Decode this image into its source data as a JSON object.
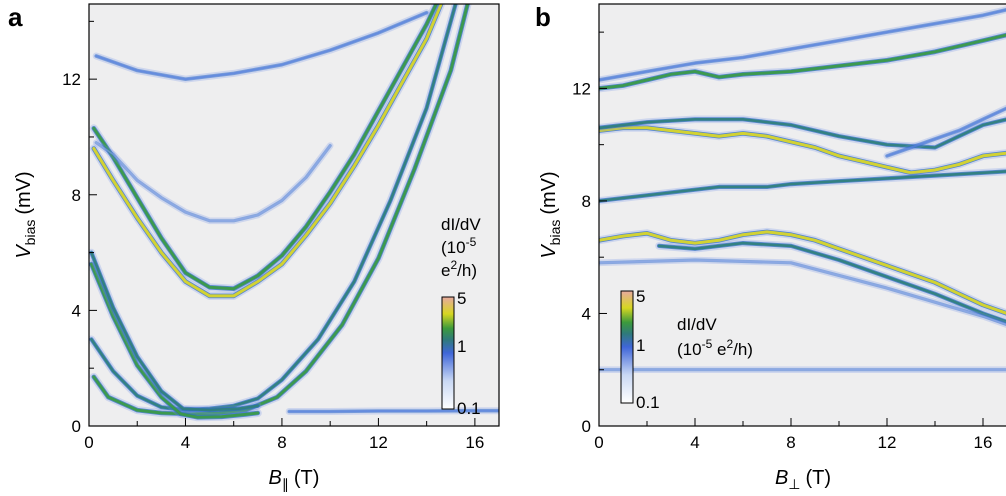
{
  "chart_data": [
    {
      "panel_label": "a",
      "type": "heatmap",
      "xlabel": {
        "symbol": "B",
        "sub": "∥",
        "unit": "(T)"
      },
      "ylabel": {
        "symbol": "V",
        "sub": "bias",
        "unit": "(mV)"
      },
      "xlim": [
        0,
        17
      ],
      "ylim": [
        0,
        14.6
      ],
      "xticks": [
        0,
        4,
        8,
        12,
        16
      ],
      "yticks": [
        0,
        4,
        8,
        12
      ],
      "colorbar": {
        "title": [
          "dI/dV",
          "(10",
          "-5",
          "e",
          "2",
          "/h)"
        ],
        "tick_labels": [
          "5",
          "1",
          "0.1"
        ],
        "scale": "log",
        "range": [
          0.1,
          5
        ]
      },
      "features": [
        {
          "kind": "curve",
          "level": 1.6,
          "points": [
            [
              0.2,
              1.7
            ],
            [
              0.8,
              1.0
            ],
            [
              2,
              0.55
            ],
            [
              3,
              0.45
            ],
            [
              4.2,
              0.42
            ],
            [
              5.4,
              0.45
            ],
            [
              6.5,
              0.55
            ],
            [
              7.8,
              1.0
            ],
            [
              9,
              1.9
            ],
            [
              10.5,
              3.5
            ],
            [
              12,
              5.8
            ],
            [
              13.5,
              8.9
            ],
            [
              15,
              12.3
            ],
            [
              15.7,
              14.6
            ]
          ]
        },
        {
          "kind": "curve",
          "level": 1.2,
          "points": [
            [
              0.1,
              3.0
            ],
            [
              1,
              1.9
            ],
            [
              2,
              1.05
            ],
            [
              3,
              0.65
            ],
            [
              4,
              0.55
            ],
            [
              5,
              0.6
            ],
            [
              6,
              0.7
            ],
            [
              7,
              0.95
            ],
            [
              8,
              1.6
            ],
            [
              9.5,
              3.0
            ],
            [
              11,
              5.0
            ],
            [
              12.5,
              7.8
            ],
            [
              14,
              11.0
            ],
            [
              15.2,
              14.6
            ]
          ]
        },
        {
          "kind": "curve",
          "level": 1.6,
          "points": [
            [
              0.1,
              5.6
            ],
            [
              1,
              3.8
            ],
            [
              2,
              2.1
            ],
            [
              3,
              1.0
            ],
            [
              3.8,
              0.42
            ],
            [
              4.5,
              0.3
            ],
            [
              5.5,
              0.32
            ],
            [
              6.5,
              0.4
            ],
            [
              7,
              0.45
            ]
          ]
        },
        {
          "kind": "curve",
          "level": 1.3,
          "points": [
            [
              0.1,
              6.0
            ],
            [
              1,
              4.1
            ],
            [
              2,
              2.4
            ],
            [
              3,
              1.2
            ],
            [
              3.9,
              0.6
            ],
            [
              5,
              0.55
            ],
            [
              6.2,
              0.6
            ],
            [
              7,
              0.7
            ]
          ]
        },
        {
          "kind": "curve",
          "level": 1.75,
          "points": [
            [
              0.2,
              9.6
            ],
            [
              1,
              8.5
            ],
            [
              2,
              7.2
            ],
            [
              3,
              6.0
            ],
            [
              4,
              5.0
            ],
            [
              5,
              4.5
            ],
            [
              6,
              4.5
            ],
            [
              7,
              5.0
            ],
            [
              8,
              5.6
            ],
            [
              9,
              6.6
            ],
            [
              10,
              7.7
            ],
            [
              11,
              9.0
            ],
            [
              12,
              10.4
            ],
            [
              13,
              11.9
            ],
            [
              14,
              13.4
            ],
            [
              14.6,
              14.6
            ]
          ]
        },
        {
          "kind": "curve",
          "level": 1.45,
          "points": [
            [
              0.2,
              10.3
            ],
            [
              1,
              9.3
            ],
            [
              2,
              7.9
            ],
            [
              3,
              6.5
            ],
            [
              4,
              5.3
            ],
            [
              5,
              4.8
            ],
            [
              6,
              4.75
            ],
            [
              7,
              5.2
            ],
            [
              8,
              5.9
            ],
            [
              9,
              6.9
            ],
            [
              10,
              8.1
            ],
            [
              11,
              9.4
            ],
            [
              12,
              10.9
            ],
            [
              13,
              12.4
            ],
            [
              14,
              13.9
            ],
            [
              14.4,
              14.6
            ]
          ]
        },
        {
          "kind": "curve",
          "level": 0.55,
          "points": [
            [
              0.3,
              12.8
            ],
            [
              2,
              12.3
            ],
            [
              4,
              12.0
            ],
            [
              6,
              12.2
            ],
            [
              8,
              12.5
            ],
            [
              10,
              13.0
            ],
            [
              12,
              13.6
            ],
            [
              14,
              14.3
            ]
          ]
        },
        {
          "kind": "curve",
          "level": 0.4,
          "points": [
            [
              0.3,
              9.8
            ],
            [
              1,
              9.4
            ],
            [
              2,
              8.5
            ],
            [
              3,
              7.9
            ],
            [
              4,
              7.4
            ],
            [
              5,
              7.1
            ],
            [
              6,
              7.1
            ],
            [
              7,
              7.3
            ],
            [
              8,
              7.8
            ],
            [
              9,
              8.6
            ],
            [
              10,
              9.7
            ]
          ]
        },
        {
          "kind": "curve",
          "level": 0.6,
          "points": [
            [
              8.3,
              0.5
            ],
            [
              10,
              0.5
            ],
            [
              12,
              0.52
            ],
            [
              14,
              0.52
            ],
            [
              16,
              0.53
            ],
            [
              17,
              0.53
            ]
          ]
        }
      ]
    },
    {
      "panel_label": "b",
      "type": "heatmap",
      "xlabel": {
        "symbol": "B",
        "sub": "⊥",
        "unit": "(T)"
      },
      "ylabel": {
        "symbol": "V",
        "sub": "bias",
        "unit": "(mV)"
      },
      "xlim": [
        0,
        17
      ],
      "ylim": [
        0,
        15
      ],
      "xticks": [
        0,
        4,
        8,
        12,
        16
      ],
      "yticks": [
        0,
        4,
        8,
        12
      ],
      "colorbar": {
        "title": [
          "dI/dV",
          "(10",
          "-5",
          " e",
          "2",
          "/h)"
        ],
        "tick_labels": [
          "5",
          "1",
          "0.1"
        ],
        "scale": "log",
        "range": [
          0.1,
          5
        ]
      },
      "features": [
        {
          "kind": "curve",
          "level": 1.4,
          "points": [
            [
              0,
              12.0
            ],
            [
              1,
              12.1
            ],
            [
              2,
              12.3
            ],
            [
              3,
              12.5
            ],
            [
              4,
              12.6
            ],
            [
              5,
              12.4
            ],
            [
              6,
              12.5
            ],
            [
              8,
              12.6
            ],
            [
              10,
              12.8
            ],
            [
              12,
              13.0
            ],
            [
              14,
              13.3
            ],
            [
              16,
              13.7
            ],
            [
              17,
              13.9
            ]
          ]
        },
        {
          "kind": "curve",
          "level": 0.55,
          "points": [
            [
              0,
              12.3
            ],
            [
              2,
              12.6
            ],
            [
              4,
              12.9
            ],
            [
              6,
              13.1
            ],
            [
              8,
              13.4
            ],
            [
              10,
              13.7
            ],
            [
              12,
              14.0
            ],
            [
              14,
              14.3
            ],
            [
              16,
              14.6
            ],
            [
              17,
              14.8
            ]
          ]
        },
        {
          "kind": "curve",
          "level": 1.75,
          "points": [
            [
              0,
              10.5
            ],
            [
              1,
              10.6
            ],
            [
              2,
              10.6
            ],
            [
              3,
              10.5
            ],
            [
              4,
              10.4
            ],
            [
              5,
              10.3
            ],
            [
              6,
              10.4
            ],
            [
              7,
              10.3
            ],
            [
              8,
              10.1
            ],
            [
              9,
              9.9
            ],
            [
              10,
              9.6
            ],
            [
              11,
              9.4
            ],
            [
              12,
              9.2
            ],
            [
              13,
              9.0
            ],
            [
              14,
              9.1
            ],
            [
              15,
              9.3
            ],
            [
              16,
              9.6
            ],
            [
              17,
              9.7
            ]
          ]
        },
        {
          "kind": "curve",
          "level": 1.3,
          "points": [
            [
              0,
              10.6
            ],
            [
              2,
              10.8
            ],
            [
              4,
              10.9
            ],
            [
              6,
              10.9
            ],
            [
              8,
              10.7
            ],
            [
              10,
              10.3
            ],
            [
              12,
              10.0
            ],
            [
              14,
              9.9
            ],
            [
              15,
              10.3
            ],
            [
              16,
              10.7
            ],
            [
              17,
              10.9
            ]
          ]
        },
        {
          "kind": "curve",
          "level": 0.6,
          "points": [
            [
              12,
              9.6
            ],
            [
              13,
              9.9
            ],
            [
              14,
              10.2
            ],
            [
              15,
              10.5
            ],
            [
              16,
              10.9
            ],
            [
              17,
              11.3
            ]
          ]
        },
        {
          "kind": "curve",
          "level": 1.35,
          "points": [
            [
              0,
              8.0
            ],
            [
              1,
              8.1
            ],
            [
              2,
              8.2
            ],
            [
              3,
              8.3
            ],
            [
              4,
              8.4
            ],
            [
              5,
              8.5
            ],
            [
              6,
              8.5
            ],
            [
              7,
              8.5
            ],
            [
              8,
              8.6
            ],
            [
              10,
              8.7
            ],
            [
              12,
              8.8
            ],
            [
              14,
              8.9
            ],
            [
              16,
              9.0
            ],
            [
              17,
              9.05
            ]
          ]
        },
        {
          "kind": "curve",
          "level": 1.8,
          "points": [
            [
              0,
              6.6
            ],
            [
              1,
              6.75
            ],
            [
              2,
              6.85
            ],
            [
              3,
              6.6
            ],
            [
              4,
              6.5
            ],
            [
              5,
              6.6
            ],
            [
              6,
              6.8
            ],
            [
              7,
              6.9
            ],
            [
              8,
              6.8
            ],
            [
              9,
              6.6
            ],
            [
              10,
              6.3
            ],
            [
              11,
              6.0
            ],
            [
              12,
              5.7
            ],
            [
              13,
              5.4
            ],
            [
              14,
              5.1
            ],
            [
              15,
              4.7
            ],
            [
              16,
              4.3
            ],
            [
              17,
              4.0
            ]
          ]
        },
        {
          "kind": "curve",
          "level": 1.1,
          "points": [
            [
              2.5,
              6.4
            ],
            [
              4,
              6.3
            ],
            [
              6,
              6.5
            ],
            [
              8,
              6.4
            ],
            [
              10,
              5.9
            ],
            [
              12,
              5.3
            ],
            [
              14,
              4.7
            ],
            [
              16,
              4.0
            ],
            [
              17,
              3.7
            ]
          ]
        },
        {
          "kind": "curve",
          "level": 0.45,
          "points": [
            [
              0,
              5.8
            ],
            [
              4,
              5.9
            ],
            [
              8,
              5.8
            ],
            [
              12,
              4.9
            ],
            [
              16,
              3.9
            ],
            [
              17,
              3.6
            ]
          ]
        },
        {
          "kind": "curve",
          "level": 0.3,
          "points": [
            [
              0,
              2.0
            ],
            [
              17,
              2.0
            ]
          ]
        }
      ]
    }
  ]
}
